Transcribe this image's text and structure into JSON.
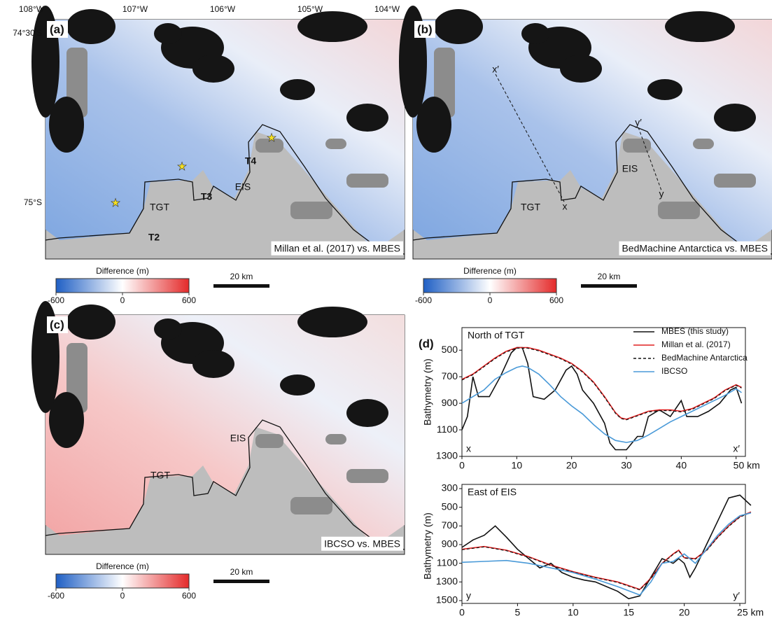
{
  "lon_labels": [
    "108°W",
    "107°W",
    "106°W",
    "105°W",
    "104°W"
  ],
  "lat_labels": [
    "74°30′S",
    "75°S"
  ],
  "colorbar": {
    "title": "Difference (m)",
    "range": [
      -600,
      600
    ],
    "ticks": [
      -600,
      0,
      600
    ]
  },
  "scale_bar": "20 km",
  "panels": [
    {
      "label": "(a)",
      "caption": "Millan et al. (2017) vs. MBES",
      "map_labels": [
        "TGT",
        "EIS",
        "T2",
        "T3",
        "T4"
      ]
    },
    {
      "label": "(b)",
      "caption": "BedMachine Antarctica vs. MBES",
      "map_labels": [
        "TGT",
        "EIS",
        "x′",
        "x",
        "y′",
        "y"
      ]
    },
    {
      "label": "(c)",
      "caption": "IBCSO vs. MBES",
      "map_labels": [
        "TGT",
        "EIS"
      ]
    }
  ],
  "chart_label": "(d)",
  "chart_data": [
    {
      "type": "line",
      "title": "North of TGT",
      "y_label": "Bathymetry (m)",
      "annotations": [
        "x",
        "x′"
      ],
      "xlim": [
        0,
        51.7
      ],
      "xticks": [
        0,
        10,
        20,
        30,
        40,
        {
          "value": 50,
          "label": "50 km"
        }
      ],
      "ylim": [
        1300,
        330
      ],
      "yticks": [
        500,
        700,
        900,
        1100,
        1300
      ],
      "series": [
        {
          "name": "MBES (this study)",
          "color": "#111111",
          "dash": false,
          "x": [
            0,
            1,
            2,
            3,
            5,
            7,
            9,
            10,
            11,
            12,
            13,
            15,
            17,
            19,
            20,
            21,
            22,
            24,
            26,
            27,
            28,
            30,
            32,
            33,
            34,
            36,
            38,
            40,
            41,
            43,
            45,
            47,
            49,
            50,
            51
          ],
          "values": [
            1100,
            1000,
            700,
            850,
            850,
            700,
            520,
            480,
            480,
            600,
            850,
            870,
            800,
            650,
            620,
            680,
            800,
            900,
            1050,
            1200,
            1250,
            1250,
            1150,
            1150,
            1000,
            950,
            1000,
            880,
            1000,
            1000,
            960,
            900,
            800,
            780,
            900
          ]
        },
        {
          "name": "Millan et al. (2017)",
          "color": "#e02020",
          "dash": false,
          "x": [
            0,
            2,
            4,
            6,
            8,
            10,
            12,
            14,
            16,
            18,
            20,
            22,
            24,
            26,
            28,
            29,
            30,
            32,
            34,
            36,
            38,
            40,
            42,
            44,
            46,
            48,
            50,
            51
          ],
          "values": [
            720,
            680,
            620,
            560,
            510,
            480,
            480,
            500,
            530,
            560,
            600,
            660,
            740,
            850,
            970,
            1010,
            1020,
            990,
            960,
            950,
            950,
            960,
            940,
            900,
            860,
            800,
            760,
            780
          ]
        },
        {
          "name": "BedMachine Antarctica",
          "color": "#111111",
          "dash": true,
          "x": [
            0,
            2,
            4,
            6,
            8,
            10,
            12,
            14,
            16,
            18,
            20,
            22,
            24,
            26,
            28,
            29,
            30,
            32,
            34,
            36,
            38,
            40,
            42,
            44,
            46,
            48,
            50,
            51
          ],
          "values": [
            725,
            685,
            625,
            565,
            515,
            485,
            485,
            505,
            535,
            565,
            605,
            665,
            745,
            855,
            975,
            1015,
            1025,
            995,
            965,
            955,
            955,
            965,
            945,
            905,
            865,
            805,
            765,
            785
          ]
        },
        {
          "name": "IBCSO",
          "color": "#4a9ad8",
          "dash": false,
          "x": [
            0,
            2,
            4,
            6,
            8,
            10,
            11,
            12,
            14,
            16,
            18,
            20,
            22,
            24,
            26,
            28,
            30,
            32,
            34,
            36,
            38,
            40,
            42,
            44,
            46,
            48,
            50,
            51
          ],
          "values": [
            900,
            850,
            800,
            720,
            670,
            630,
            620,
            630,
            680,
            760,
            850,
            920,
            980,
            1060,
            1130,
            1180,
            1195,
            1180,
            1140,
            1090,
            1040,
            1000,
            960,
            920,
            880,
            840,
            790,
            820
          ]
        }
      ]
    },
    {
      "type": "line",
      "title": "East of EIS",
      "y_label": "Bathymetry (m)",
      "annotations": [
        "y",
        "y′"
      ],
      "xlim": [
        0,
        25.5
      ],
      "xticks": [
        0,
        5,
        10,
        15,
        20,
        {
          "value": 25,
          "label": "25 km"
        }
      ],
      "ylim": [
        1530,
        255
      ],
      "yticks": [
        300,
        500,
        700,
        900,
        1100,
        1300,
        1500
      ],
      "series": [
        {
          "color": "#111111",
          "dash": false,
          "x": [
            0,
            1,
            2,
            3,
            4,
            5,
            6,
            7,
            8,
            9,
            10,
            11,
            12,
            13,
            14,
            15,
            16,
            17,
            18,
            19,
            19.5,
            20,
            20.5,
            21,
            22,
            23,
            24,
            25,
            26
          ],
          "values": [
            930,
            850,
            800,
            700,
            820,
            950,
            1050,
            1150,
            1100,
            1200,
            1250,
            1280,
            1300,
            1350,
            1400,
            1480,
            1450,
            1250,
            1050,
            1100,
            1050,
            1100,
            1250,
            1150,
            900,
            650,
            400,
            370,
            480
          ]
        },
        {
          "color": "#e02020",
          "dash": false,
          "x": [
            0,
            2,
            4,
            6,
            8,
            10,
            12,
            14,
            16,
            17,
            18,
            19,
            19.5,
            20,
            21,
            22,
            23,
            24,
            25,
            26
          ],
          "values": [
            950,
            920,
            960,
            1030,
            1120,
            1190,
            1250,
            1300,
            1380,
            1260,
            1100,
            1000,
            960,
            1040,
            1050,
            960,
            820,
            700,
            600,
            550
          ]
        },
        {
          "color": "#111111",
          "dash": true,
          "x": [
            0,
            2,
            4,
            6,
            8,
            10,
            12,
            14,
            16,
            17,
            18,
            19,
            19.5,
            20,
            21,
            22,
            23,
            24,
            25,
            26
          ],
          "values": [
            955,
            925,
            965,
            1035,
            1125,
            1195,
            1255,
            1305,
            1385,
            1265,
            1105,
            1005,
            965,
            1045,
            1055,
            965,
            825,
            705,
            605,
            555
          ]
        },
        {
          "color": "#4a9ad8",
          "dash": false,
          "x": [
            0,
            2,
            4,
            6,
            8,
            10,
            12,
            14,
            16,
            17,
            18,
            19,
            20,
            21,
            22,
            23,
            24,
            25,
            26
          ],
          "values": [
            1090,
            1080,
            1070,
            1100,
            1150,
            1200,
            1270,
            1350,
            1440,
            1300,
            1100,
            1080,
            1000,
            1100,
            950,
            800,
            680,
            590,
            560
          ]
        }
      ]
    }
  ]
}
